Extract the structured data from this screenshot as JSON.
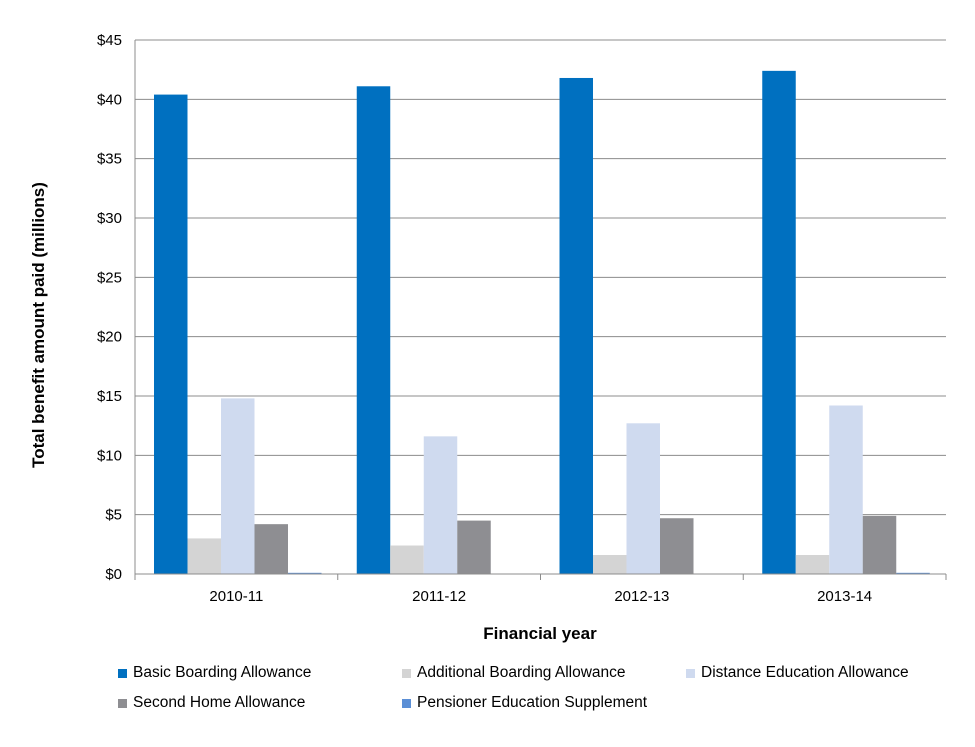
{
  "chart_data": {
    "type": "bar",
    "title": "",
    "xlabel": "Financial year",
    "ylabel": "Total benefit amount paid (millions)",
    "categories": [
      "2010-11",
      "2011-12",
      "2012-13",
      "2013-14"
    ],
    "ylim": [
      0,
      45
    ],
    "yticks": [
      0,
      5,
      10,
      15,
      20,
      25,
      30,
      35,
      40,
      45
    ],
    "ytick_labels": [
      "$0",
      "$5",
      "$10",
      "$15",
      "$20",
      "$25",
      "$30",
      "$35",
      "$40",
      "$45"
    ],
    "grid": true,
    "legend_position": "bottom",
    "series": [
      {
        "name": "Basic Boarding Allowance",
        "color": "#0070c0",
        "values": [
          40.4,
          41.1,
          41.8,
          42.4
        ]
      },
      {
        "name": "Additional Boarding Allowance",
        "color": "#d4d4d4",
        "values": [
          3.0,
          2.4,
          1.6,
          1.6
        ]
      },
      {
        "name": "Distance Education Allowance",
        "color": "#cfdaef",
        "values": [
          14.8,
          11.6,
          12.7,
          14.2
        ]
      },
      {
        "name": "Second Home Allowance",
        "color": "#8e8e92",
        "values": [
          4.2,
          4.5,
          4.7,
          4.9
        ]
      },
      {
        "name": "Pensioner Education Supplement",
        "color": "#5b8fd6",
        "values": [
          0.1,
          0.0,
          0.0,
          0.1
        ]
      }
    ]
  }
}
